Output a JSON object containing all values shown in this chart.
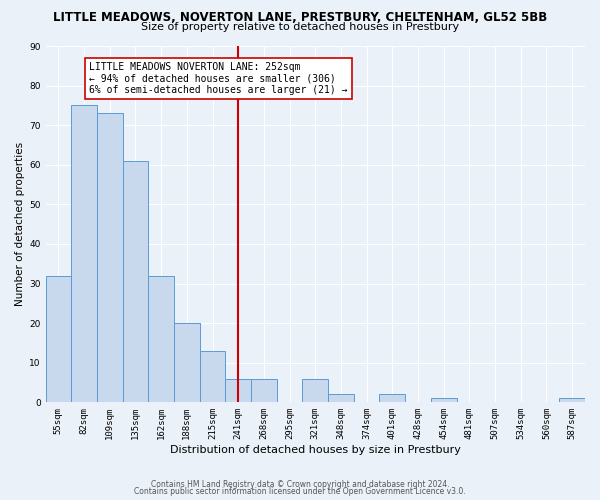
{
  "title": "LITTLE MEADOWS, NOVERTON LANE, PRESTBURY, CHELTENHAM, GL52 5BB",
  "subtitle": "Size of property relative to detached houses in Prestbury",
  "xlabel": "Distribution of detached houses by size in Prestbury",
  "ylabel": "Number of detached properties",
  "bar_labels": [
    "55sqm",
    "82sqm",
    "109sqm",
    "135sqm",
    "162sqm",
    "188sqm",
    "215sqm",
    "241sqm",
    "268sqm",
    "295sqm",
    "321sqm",
    "348sqm",
    "374sqm",
    "401sqm",
    "428sqm",
    "454sqm",
    "481sqm",
    "507sqm",
    "534sqm",
    "560sqm",
    "587sqm"
  ],
  "bar_heights": [
    32,
    75,
    73,
    61,
    32,
    20,
    13,
    6,
    6,
    0,
    6,
    2,
    0,
    2,
    0,
    1,
    0,
    0,
    0,
    0,
    1
  ],
  "bar_color": "#c8d9ee",
  "bar_edge_color": "#5b9bd5",
  "vline_index": 7,
  "vline_color": "#cc0000",
  "annotation_line1": "LITTLE MEADOWS NOVERTON LANE: 252sqm",
  "annotation_line2": "← 94% of detached houses are smaller (306)",
  "annotation_line3": "6% of semi-detached houses are larger (21) →",
  "annotation_box_color": "#ffffff",
  "annotation_box_edge": "#cc0000",
  "footer1": "Contains HM Land Registry data © Crown copyright and database right 2024.",
  "footer2": "Contains public sector information licensed under the Open Government Licence v3.0.",
  "ylim": [
    0,
    90
  ],
  "yticks": [
    0,
    10,
    20,
    30,
    40,
    50,
    60,
    70,
    80,
    90
  ],
  "bg_color": "#eaf1f8",
  "title_fontsize": 8.5,
  "subtitle_fontsize": 8.0,
  "xlabel_fontsize": 8.0,
  "ylabel_fontsize": 7.5,
  "tick_fontsize": 6.5,
  "footer_fontsize": 5.5,
  "annot_fontsize": 7.0
}
